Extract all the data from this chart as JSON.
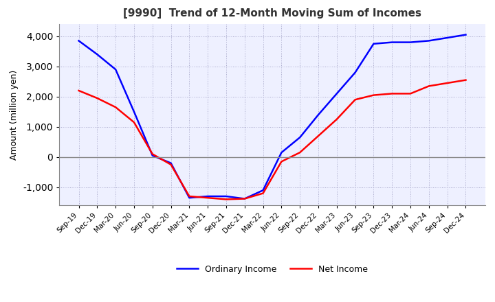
{
  "title": "[9990]  Trend of 12-Month Moving Sum of Incomes",
  "ylabel": "Amount (million yen)",
  "ylim": [
    -1600,
    4400
  ],
  "yticks": [
    -1000,
    0,
    1000,
    2000,
    3000,
    4000
  ],
  "line_blue": "#0000FF",
  "line_red": "#FF0000",
  "legend_labels": [
    "Ordinary Income",
    "Net Income"
  ],
  "x_labels": [
    "Sep-19",
    "Dec-19",
    "Mar-20",
    "Jun-20",
    "Sep-20",
    "Dec-20",
    "Mar-21",
    "Jun-21",
    "Sep-21",
    "Dec-21",
    "Mar-22",
    "Jun-22",
    "Sep-22",
    "Dec-22",
    "Mar-23",
    "Jun-23",
    "Sep-23",
    "Dec-23",
    "Mar-24",
    "Jun-24",
    "Sep-24",
    "Dec-24"
  ],
  "ordinary_income": [
    3850,
    3400,
    2900,
    1500,
    50,
    -200,
    -1350,
    -1300,
    -1300,
    -1380,
    -1100,
    150,
    650,
    1400,
    2100,
    2800,
    3750,
    3800,
    3800,
    3850,
    3950,
    4050
  ],
  "net_income": [
    2200,
    1950,
    1650,
    1150,
    100,
    -250,
    -1300,
    -1350,
    -1400,
    -1380,
    -1200,
    -150,
    150,
    700,
    1250,
    1900,
    2050,
    2100,
    2100,
    2350,
    2450,
    2550
  ],
  "grid_color": "#AAAACC",
  "bg_color": "#FFFFFF",
  "plot_bg_color": "#EEF0FF",
  "zero_line_color": "#888888"
}
